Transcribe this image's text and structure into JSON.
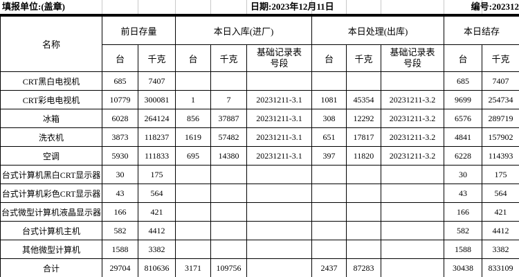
{
  "topbar": {
    "unit_label": "填报单位:(盖章)",
    "date_label": "日期:2023年12月11日",
    "number_label": "编号:202312"
  },
  "table": {
    "name_header": "名称",
    "groups": [
      {
        "label": "前日存量",
        "sub": [
          "台",
          "千克"
        ]
      },
      {
        "label": "本日入库(进厂)",
        "sub": [
          "台",
          "千克",
          "基础记录表号段"
        ]
      },
      {
        "label": "本日处理(出库)",
        "sub": [
          "台",
          "千克",
          "基础记录表号段"
        ]
      },
      {
        "label": "本日结存",
        "sub": [
          "台",
          "千克"
        ]
      }
    ],
    "rows": [
      {
        "name": "CRT黑白电视机",
        "cells": [
          "685",
          "7407",
          "",
          "",
          "",
          "",
          "",
          "",
          "685",
          "7407"
        ]
      },
      {
        "name": "CRT彩电电视机",
        "cells": [
          "10779",
          "300081",
          "1",
          "7",
          "20231211-3.1",
          "1081",
          "45354",
          "20231211-3.2",
          "9699",
          "254734"
        ]
      },
      {
        "name": "冰箱",
        "cells": [
          "6028",
          "264124",
          "856",
          "37887",
          "20231211-3.1",
          "308",
          "12292",
          "20231211-3.2",
          "6576",
          "289719"
        ]
      },
      {
        "name": "洗衣机",
        "cells": [
          "3873",
          "118237",
          "1619",
          "57482",
          "20231211-3.1",
          "651",
          "17817",
          "20231211-3.2",
          "4841",
          "157902"
        ]
      },
      {
        "name": "空调",
        "cells": [
          "5930",
          "111833",
          "695",
          "14380",
          "20231211-3.1",
          "397",
          "11820",
          "20231211-3.2",
          "6228",
          "114393"
        ]
      },
      {
        "name": "台式计算机黑白CRT显示器",
        "cells": [
          "30",
          "175",
          "",
          "",
          "",
          "",
          "",
          "",
          "30",
          "175"
        ]
      },
      {
        "name": "台式计算机彩色CRT显示器",
        "cells": [
          "43",
          "564",
          "",
          "",
          "",
          "",
          "",
          "",
          "43",
          "564"
        ]
      },
      {
        "name": "台式微型计算机液晶显示器",
        "cells": [
          "166",
          "421",
          "",
          "",
          "",
          "",
          "",
          "",
          "166",
          "421"
        ]
      },
      {
        "name": "台式计算机主机",
        "cells": [
          "582",
          "4412",
          "",
          "",
          "",
          "",
          "",
          "",
          "582",
          "4412"
        ]
      },
      {
        "name": "其他微型计算机",
        "cells": [
          "1588",
          "3382",
          "",
          "",
          "",
          "",
          "",
          "",
          "1588",
          "3382"
        ]
      },
      {
        "name": "合计",
        "cells": [
          "29704",
          "810636",
          "3171",
          "109756",
          "",
          "2437",
          "87283",
          "",
          "30438",
          "833109"
        ]
      }
    ]
  },
  "colors": {
    "border": "#000000",
    "faint_gridline": "#c8c8c8",
    "text": "#000000",
    "background": "#ffffff"
  }
}
